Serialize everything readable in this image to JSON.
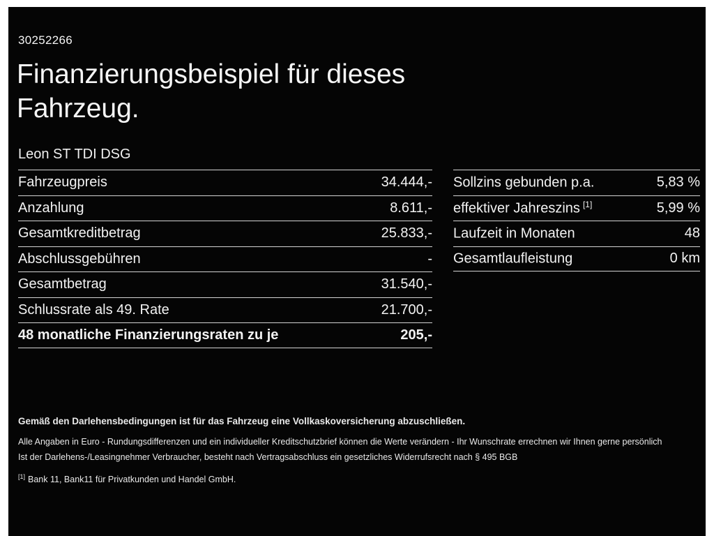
{
  "header": {
    "ref_number": "30252266",
    "title_line1": "Finanzierungsbeispiel für dieses",
    "title_line2": "Fahrzeug.",
    "vehicle_model": "Leon ST TDI DSG"
  },
  "finance_table": {
    "rows": [
      {
        "label": "Fahrzeugpreis",
        "value": "34.444,-"
      },
      {
        "label": "Anzahlung",
        "value": "8.611,-"
      },
      {
        "label": "Gesamtkreditbetrag",
        "value": "25.833,-"
      },
      {
        "label": "Abschlussgebühren",
        "value": "-"
      },
      {
        "label": "Gesamtbetrag",
        "value": "31.540,-"
      },
      {
        "label": "Schlussrate als 49. Rate",
        "value": "21.700,-"
      },
      {
        "label": "48 monatliche Finanzierungsraten zu je",
        "value": "205,-"
      }
    ]
  },
  "conditions_table": {
    "rows": [
      {
        "label": "Sollzins gebunden p.a.",
        "sup": "",
        "value": "5,83 %"
      },
      {
        "label": "effektiver Jahreszins",
        "sup": "[1]",
        "value": "5,99 %"
      },
      {
        "label": "Laufzeit in Monaten",
        "sup": "",
        "value": "48"
      },
      {
        "label": "Gesamtlaufleistung",
        "sup": "",
        "value": "0 km"
      }
    ]
  },
  "footnotes": {
    "insurance_note": "Gemäß den Darlehensbedingungen ist für das Fahrzeug eine Vollkaskoversicherung abzuschließen.",
    "disclaimer_line1": "Alle Angaben in Euro - Rundungsdifferenzen und ein individueller Kreditschutzbrief können die Werte verändern - Ihr Wunschrate errechnen wir Ihnen gerne persönlich",
    "disclaimer_line2": "Ist der Darlehens-/Leasingnehmer Verbraucher, besteht nach Vertragsabschluss ein gesetzliches Widerrufsrecht nach § 495 BGB",
    "bank_ref_marker": "[1]",
    "bank_ref": "Bank 11, Bank11 für Privatkunden und Handel GmbH."
  },
  "colors": {
    "background": "#050505",
    "text": "#f2f2f2",
    "divider": "#d4d4d4"
  }
}
